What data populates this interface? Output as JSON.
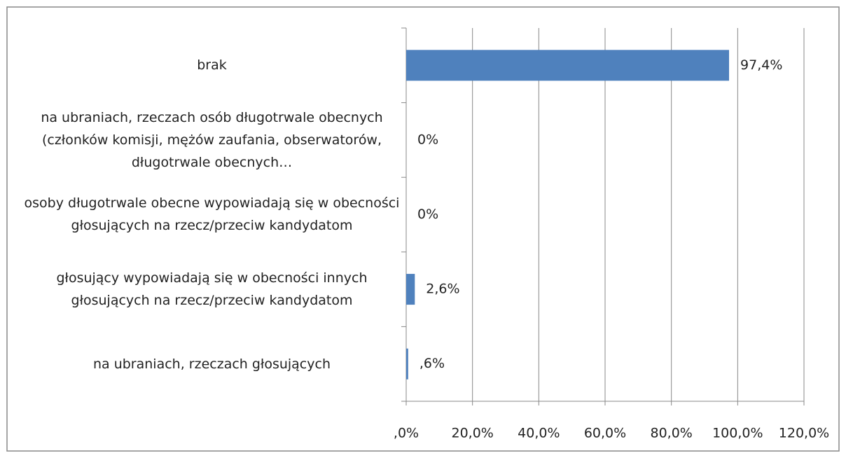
{
  "chart_data": {
    "type": "bar",
    "orientation": "horizontal",
    "categories": [
      "brak",
      "na ubraniach, rzeczach osób długotrwale obecnych (członków komisji, mężów zaufania, obserwatorów, długotrwale obecnych…",
      "osoby długotrwale obecne wypowiadają się w obecności głosujących na rzecz/przeciw kandydatom",
      "głosujący wypowiadają się w obecności innych głosujących na rzecz/przeciw kandydatom",
      "na ubraniach, rzeczach głosujących"
    ],
    "values": [
      97.4,
      0,
      0,
      2.6,
      0.6
    ],
    "value_labels": [
      "97,4%",
      "0%",
      "0%",
      "2,6%",
      ",6%"
    ],
    "color": "#4f81bd",
    "xlim": [
      0,
      120
    ],
    "xticks": [
      {
        "value": 0,
        "label": ",0%"
      },
      {
        "value": 20,
        "label": "20,0%"
      },
      {
        "value": 40,
        "label": "40,0%"
      },
      {
        "value": 60,
        "label": "60,0%"
      },
      {
        "value": 80,
        "label": "80,0%"
      },
      {
        "value": 100,
        "label": "100,0%"
      },
      {
        "value": 120,
        "label": "120,0%"
      }
    ],
    "grid": true
  }
}
